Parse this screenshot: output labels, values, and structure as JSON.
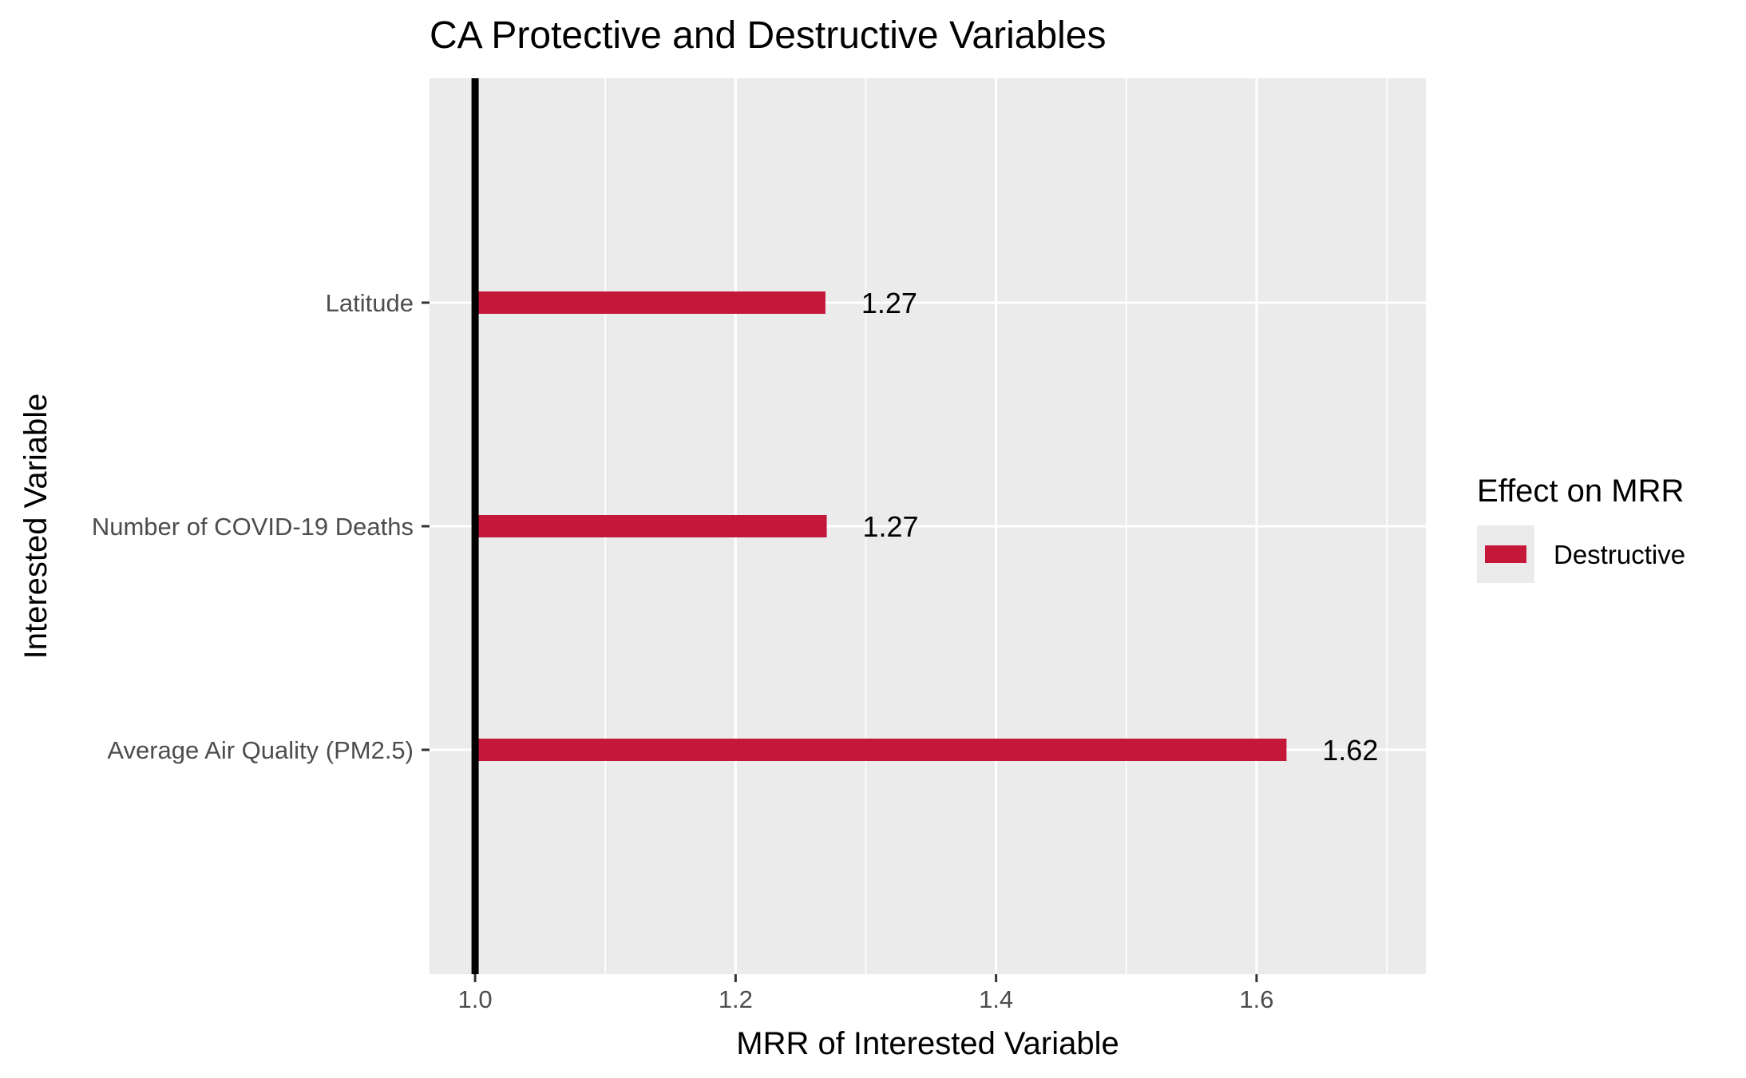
{
  "chart_data": {
    "type": "bar",
    "orientation": "horizontal",
    "title": "CA Protective and Destructive Variables",
    "xlabel": "MRR of Interested Variable",
    "ylabel": "Interested Variable",
    "categories": [
      "Average Air Quality (PM2.5)",
      "Number of COVID-19 Deaths",
      "Latitude"
    ],
    "values": [
      1.623,
      1.27,
      1.269
    ],
    "data_labels": [
      "1.62",
      "1.27",
      "1.27"
    ],
    "xlim": [
      0.965,
      1.73
    ],
    "x_ticks": [
      1.0,
      1.2,
      1.4,
      1.6
    ],
    "x_tick_labels": [
      "1.0",
      "1.2",
      "1.4",
      "1.6"
    ],
    "x_minor_ticks": [
      1.1,
      1.3,
      1.5,
      1.7
    ],
    "baseline": 1.0,
    "grid": true,
    "legend": {
      "title": "Effect on MRR",
      "position": "right",
      "items": [
        {
          "label": "Destructive",
          "color": "#c4173a"
        }
      ]
    },
    "colors": {
      "bar": "#c4173a",
      "panel_background": "#ebebeb",
      "grid": "#ffffff",
      "baseline": "#000000"
    }
  }
}
